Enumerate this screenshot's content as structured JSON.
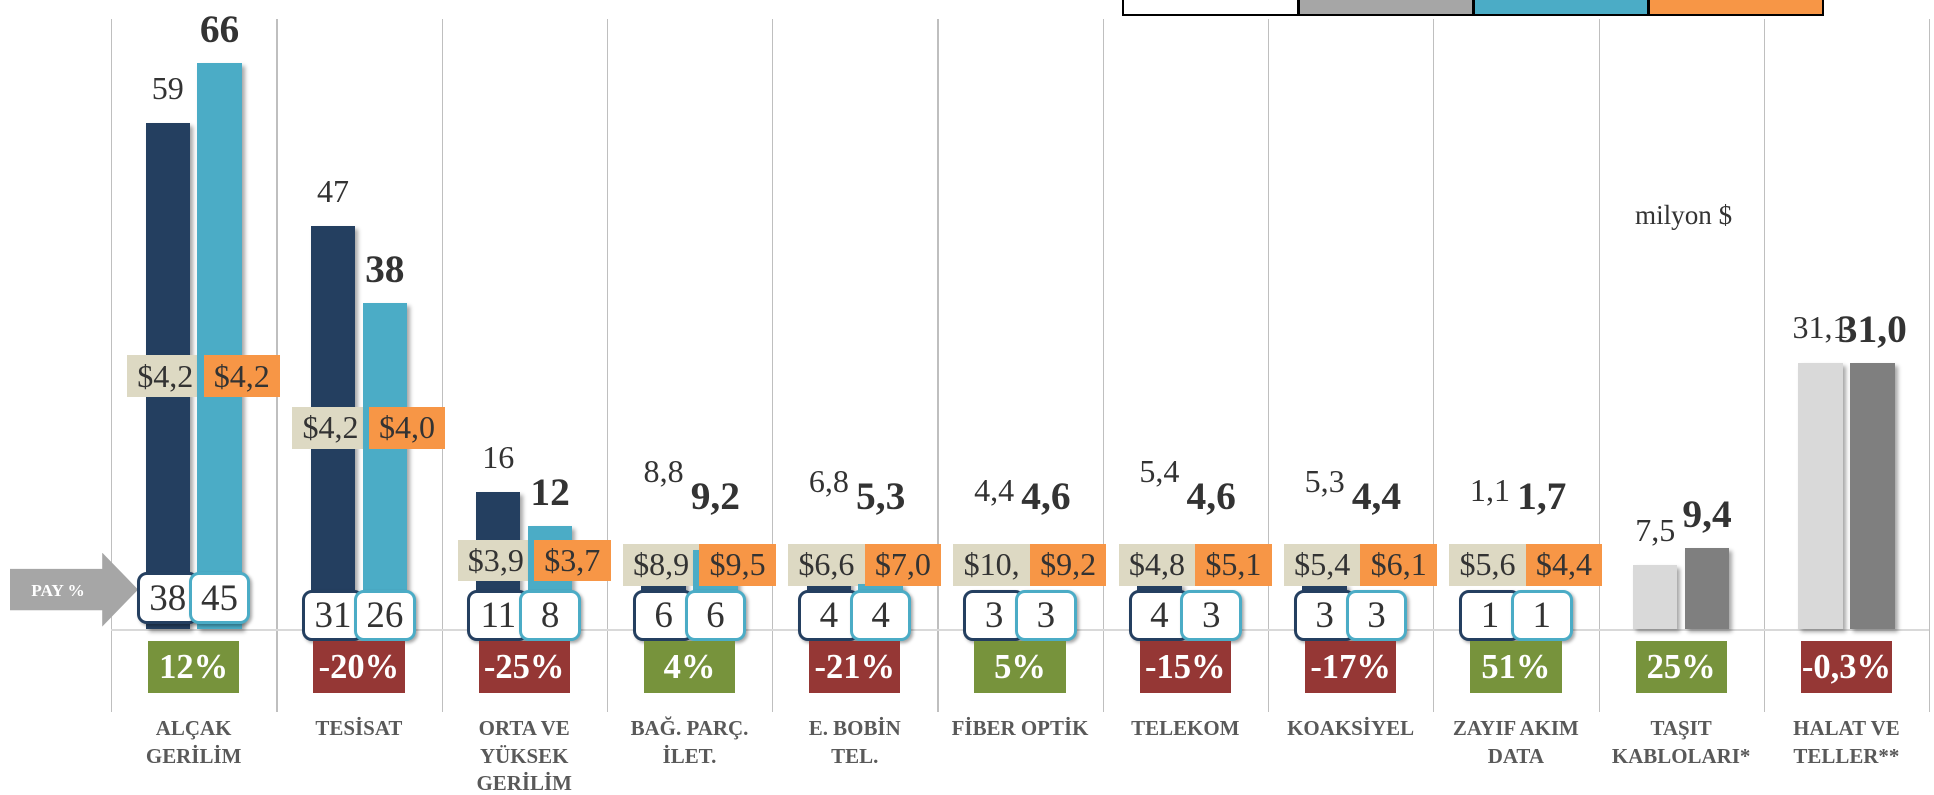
{
  "chart_data": {
    "type": "bar",
    "subtitle": "milyon $",
    "pointer_label": "PAY %",
    "categories": [
      "ALÇAK\nGERİLİM",
      "TESİSAT",
      "ORTA VE\nYÜKSEK\nGERİLİM",
      "BAĞ. PARÇ.\nİLET.",
      "E. BOBİN\nTEL.",
      "FİBER OPTİK",
      "TELEKOM",
      "KOAKSİYEL",
      "ZAYIF AKIM\nDATA",
      "TAŞIT\nKABLOLARI*",
      "HALAT VE\nTELLER**"
    ],
    "ylim": [
      0,
      70
    ],
    "series": [
      {
        "colors": [
          "#243f60",
          "#243f60",
          "#243f60",
          "#243f60",
          "#243f60",
          "#243f60",
          "#243f60",
          "#243f60",
          "#243f60",
          "#d9d9d9",
          "#d9d9d9"
        ],
        "values": [
          59,
          47,
          16,
          8.8,
          6.8,
          4.4,
          5.4,
          5.3,
          1.1,
          7.5,
          31.1
        ],
        "value_labels": [
          "59",
          "47",
          "16",
          "8,8",
          "6,8",
          "4,4",
          "5,4",
          "5,3",
          "1,1",
          "7,5",
          "31,1"
        ],
        "prices": [
          4.2,
          4.2,
          3.9,
          8.9,
          6.6,
          10,
          4.8,
          5.4,
          5.6,
          null,
          null
        ],
        "price_labels": [
          "$4,2",
          "$4,2",
          "$3,9",
          "$8,9",
          "$6,6",
          "$10,",
          "$4,8",
          "$5,4",
          "$5,6",
          null,
          null
        ],
        "price_color": "#ddd9c3",
        "shares": [
          38,
          31,
          11,
          6,
          4,
          3,
          4,
          3,
          1,
          null,
          null
        ]
      },
      {
        "colors": [
          "#4bacc6",
          "#4bacc6",
          "#4bacc6",
          "#4bacc6",
          "#4bacc6",
          "#4bacc6",
          "#4bacc6",
          "#4bacc6",
          "#4bacc6",
          "#7f7f7f",
          "#7f7f7f"
        ],
        "values": [
          66,
          38,
          12,
          9.2,
          5.3,
          4.6,
          4.6,
          4.4,
          1.7,
          9.4,
          31.0
        ],
        "value_labels": [
          "66",
          "38",
          "12",
          "9,2",
          "5,3",
          "4,6",
          "4,6",
          "4,4",
          "1,7",
          "9,4",
          "31,0"
        ],
        "prices": [
          4.2,
          4.0,
          3.7,
          9.5,
          7.0,
          9.2,
          5.1,
          6.1,
          4.4,
          null,
          null
        ],
        "price_labels": [
          "$4,2",
          "$4,0",
          "$3,7",
          "$9,5",
          "$7,0",
          "$9,2",
          "$5,1",
          "$6,1",
          "$4,4",
          null,
          null
        ],
        "price_color": "#f79646",
        "shares": [
          45,
          26,
          8,
          6,
          4,
          3,
          3,
          3,
          1,
          null,
          null
        ]
      }
    ],
    "changes": [
      12,
      -20,
      -25,
      4,
      -21,
      5,
      -15,
      -17,
      51,
      25,
      -0.3
    ],
    "change_labels": [
      "12%",
      "-20%",
      "-25%",
      "4%",
      "-21%",
      "5%",
      "-15%",
      "-17%",
      "51%",
      "25%",
      "-0,3%"
    ],
    "positive_color": "#77933c",
    "negative_color": "#953735",
    "legend_colors": [
      "#ffffff",
      "#a6a6a6",
      "#4bacc6",
      "#f79646"
    ]
  }
}
